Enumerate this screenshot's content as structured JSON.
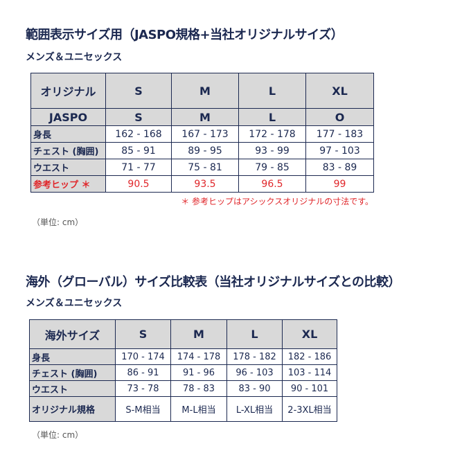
{
  "section1": {
    "title": "範囲表示サイズ用（JASPO規格+当社オリジナルサイズ）",
    "subtitle": "メンズ＆ユニセックス",
    "header": [
      "オリジナル",
      "S",
      "M",
      "L",
      "XL"
    ],
    "jaspo": [
      "JASPO",
      "S",
      "M",
      "L",
      "O"
    ],
    "rows": [
      {
        "label": "身長",
        "values": [
          "162 - 168",
          "167 - 173",
          "172 - 178",
          "177 - 183"
        ]
      },
      {
        "label": "チェスト (胸囲)",
        "values": [
          "85 - 91",
          "89 - 95",
          "93 - 99",
          "97 - 103"
        ]
      },
      {
        "label": "ウエスト",
        "values": [
          "71 - 77",
          "75 - 81",
          "79 - 85",
          "83 - 89"
        ]
      },
      {
        "label": "参考ヒップ ＊",
        "values": [
          "90.5",
          "93.5",
          "96.5",
          "99"
        ]
      }
    ],
    "note": "＊ 参考ヒップはアシックスオリジナルの寸法です。",
    "unit": "（単位: cm）"
  },
  "section2": {
    "title": "海外（グローバル）サイズ比較表（当社オリジナルサイズとの比較）",
    "subtitle": "メンズ＆ユニセックス",
    "header": [
      "海外サイズ",
      "S",
      "M",
      "L",
      "XL"
    ],
    "rows": [
      {
        "label": "身長",
        "values": [
          "170 - 174",
          "174 - 178",
          "178 - 182",
          "182 - 186"
        ]
      },
      {
        "label": "チェスト (胸囲)",
        "values": [
          "86 - 91",
          "91 - 96",
          "96 - 103",
          "103 - 114"
        ]
      },
      {
        "label": "ウエスト",
        "values": [
          "73 - 78",
          "78 - 83",
          "83 - 90",
          "90 - 101"
        ]
      },
      {
        "label": "オリジナル規格",
        "values": [
          "S-M相当",
          "M-L相当",
          "L-XL相当",
          "2-3XL相当"
        ]
      }
    ],
    "unit": "（単位: cm）"
  },
  "colors": {
    "text": "#1b2850",
    "accent_red": "#e0262a",
    "header_bg": "#d9d9d9"
  }
}
